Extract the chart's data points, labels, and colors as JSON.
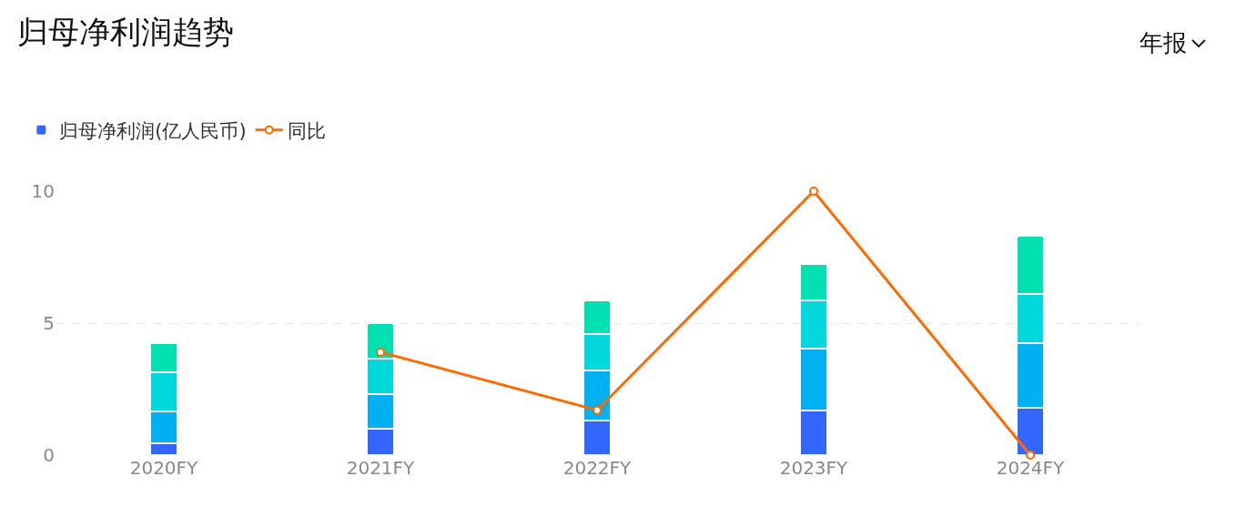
{
  "chart_data": {
    "type": "bar",
    "title": "归母净利润趋势",
    "annotations": [
      "年报"
    ],
    "categories": [
      "2020FY",
      "2021FY",
      "2022FY",
      "2023FY",
      "2024FY"
    ],
    "stacked": true,
    "series": [
      {
        "name": "归母净利润(亿人民币)",
        "color": "#3366ff",
        "values": [
          0.45,
          1.0,
          1.3,
          1.7,
          1.8
        ]
      },
      {
        "color": "#00b0f0",
        "values": [
          1.2,
          1.3,
          1.9,
          2.35,
          2.45
        ]
      },
      {
        "color": "#00d8dc",
        "values": [
          1.5,
          1.35,
          1.4,
          1.8,
          1.85
        ]
      },
      {
        "color": "#00e0b0",
        "values": [
          1.1,
          1.35,
          1.25,
          1.4,
          2.2
        ]
      },
      {
        "name": "同比",
        "type": "line",
        "color": "#ff6a00",
        "values": [
          null,
          3.9,
          1.7,
          10,
          0
        ]
      }
    ],
    "ylim": [
      0,
      10
    ],
    "yticks": [
      0,
      5,
      10
    ],
    "grid": "y",
    "legend": "top left",
    "marker": "circle",
    "line_style": "solid"
  }
}
